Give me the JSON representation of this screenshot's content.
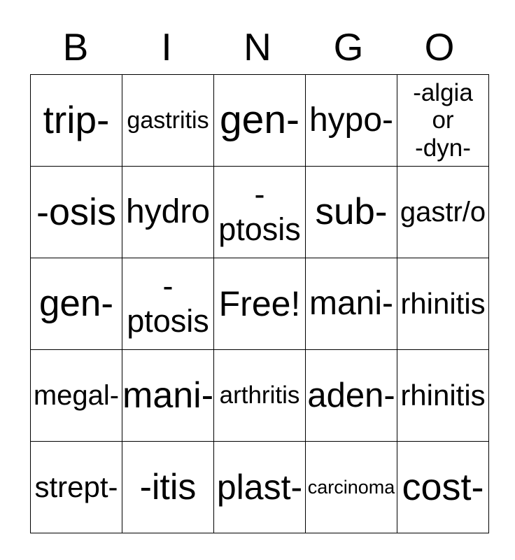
{
  "title": {
    "letters": [
      "B",
      "I",
      "N",
      "G",
      "O"
    ]
  },
  "colors": {
    "background": "#ffffff",
    "text": "#000000",
    "grid_border": "#000000"
  },
  "free_space_label": "Free!",
  "grid": {
    "rows": [
      {
        "cells": [
          {
            "lines": [
              "trip-"
            ]
          },
          {
            "lines": [
              "gastritis"
            ]
          },
          {
            "lines": [
              "gen-"
            ]
          },
          {
            "lines": [
              "hypo-"
            ]
          },
          {
            "lines": [
              "-algia",
              "or",
              "-dyn-"
            ]
          }
        ]
      },
      {
        "cells": [
          {
            "lines": [
              "-osis"
            ]
          },
          {
            "lines": [
              "hydro"
            ]
          },
          {
            "lines": [
              "-",
              "ptosis"
            ]
          },
          {
            "lines": [
              "sub-"
            ]
          },
          {
            "lines": [
              "gastr/o"
            ]
          }
        ]
      },
      {
        "cells": [
          {
            "lines": [
              "gen-"
            ]
          },
          {
            "lines": [
              "-",
              "ptosis"
            ]
          },
          {
            "lines": [
              "Free!"
            ]
          },
          {
            "lines": [
              "mani-"
            ]
          },
          {
            "lines": [
              "rhinitis"
            ]
          }
        ]
      },
      {
        "cells": [
          {
            "lines": [
              "megal-"
            ]
          },
          {
            "lines": [
              "mani-"
            ]
          },
          {
            "lines": [
              "arthritis"
            ]
          },
          {
            "lines": [
              "aden-"
            ]
          },
          {
            "lines": [
              "rhinitis"
            ]
          }
        ]
      },
      {
        "cells": [
          {
            "lines": [
              "strept-"
            ]
          },
          {
            "lines": [
              "-itis"
            ]
          },
          {
            "lines": [
              "plast-"
            ]
          },
          {
            "lines": [
              "carcinoma"
            ]
          },
          {
            "lines": [
              "cost-"
            ]
          }
        ]
      }
    ]
  }
}
